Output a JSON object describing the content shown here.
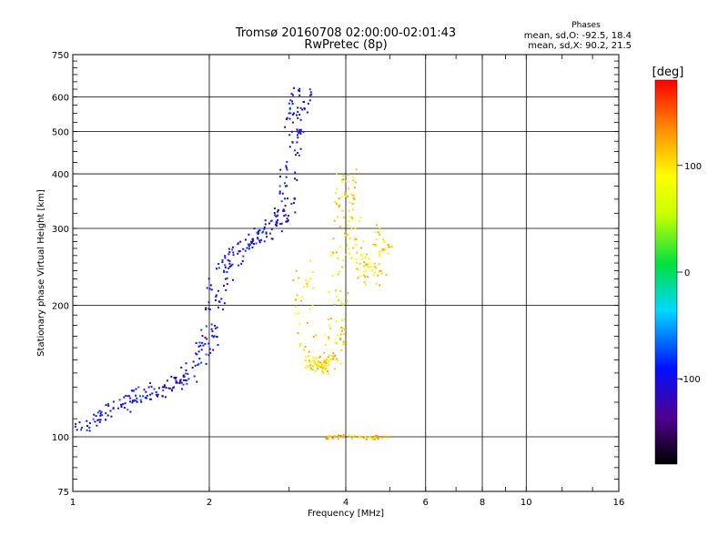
{
  "chart_data": {
    "type": "scatter",
    "title": "Tromsø 20160708 02:00:00-02:01:43",
    "subtitle": "RwPretec (8p)",
    "xlabel": "Frequency [MHz]",
    "ylabel": "Stationary phase Virtual Height [km]",
    "xscale": "log",
    "yscale": "log",
    "xlim": [
      1,
      16
    ],
    "ylim": [
      75,
      750
    ],
    "x_ticks": [
      "1",
      "2",
      "4",
      "6",
      "8",
      "10",
      "16"
    ],
    "y_ticks": [
      "75",
      "100",
      "200",
      "300",
      "400",
      "500",
      "600",
      "750"
    ],
    "grid": true,
    "stats": {
      "heading": "Phases",
      "o_line": "mean, sd,O: -92.5, 18.4",
      "x_line": "mean, sd,X: 90.2, 21.5"
    },
    "colorbar": {
      "label": "[deg]",
      "range": [
        -180,
        180
      ],
      "ticks": [
        "100",
        "0",
        "-100"
      ],
      "tick_values": [
        100,
        0,
        -100
      ]
    },
    "traces": [
      {
        "mode": "O",
        "x": [
          1.0,
          1.2,
          1.4,
          1.6,
          1.8,
          2.0,
          2.1,
          2.3,
          2.6,
          2.9,
          3.0,
          3.1,
          3.2
        ],
        "y": [
          105,
          115,
          125,
          130,
          140,
          170,
          230,
          270,
          290,
          320,
          400,
          550,
          620
        ],
        "phase": -100
      },
      {
        "mode": "X",
        "x": [
          3.2,
          3.3,
          3.5,
          3.7,
          3.8,
          3.9,
          4.0,
          4.2,
          4.6,
          4.9
        ],
        "y": [
          250,
          150,
          145,
          150,
          180,
          300,
          400,
          260,
          230,
          300
        ],
        "phase": 100
      },
      {
        "mode": "E",
        "x": [
          3.6,
          3.8,
          4.0,
          4.3,
          4.6,
          5.0
        ],
        "y": [
          100,
          100,
          101,
          100,
          100,
          100
        ],
        "phase": 110
      }
    ]
  }
}
